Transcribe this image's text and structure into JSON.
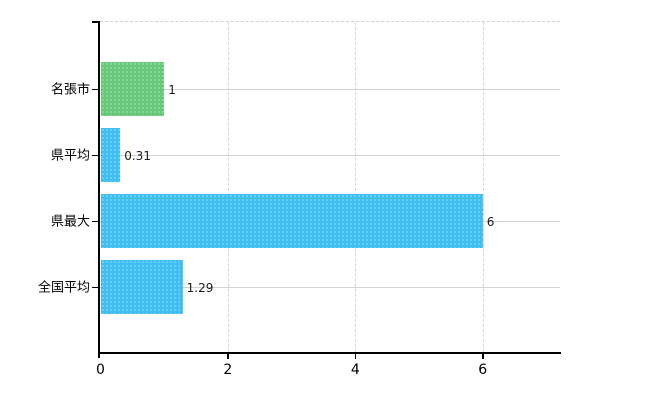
{
  "chart_data": {
    "type": "bar",
    "orientation": "horizontal",
    "title": "",
    "xlabel": "",
    "ylabel": "",
    "categories": [
      "名張市",
      "県平均",
      "県最大",
      "全国平均"
    ],
    "values": [
      1,
      0.31,
      6,
      1.29
    ],
    "value_labels": [
      "1",
      "0.31",
      "6",
      "1.29"
    ],
    "bar_colors": [
      "#66C878",
      "#3EBEF2",
      "#3EBEF2",
      "#3EBEF2"
    ],
    "x_ticks": [
      0,
      2,
      4,
      6
    ],
    "x_tick_labels": [
      "0",
      "2",
      "4",
      "6"
    ],
    "xlim": [
      0,
      7.2
    ],
    "grid": true,
    "legend": false,
    "colors": {
      "background": "#FFFFFF",
      "axis": "#000000",
      "grid_horizontal": "#CCD6CC",
      "grid_vertical": "#D8D2D8",
      "text": "#000000"
    }
  }
}
